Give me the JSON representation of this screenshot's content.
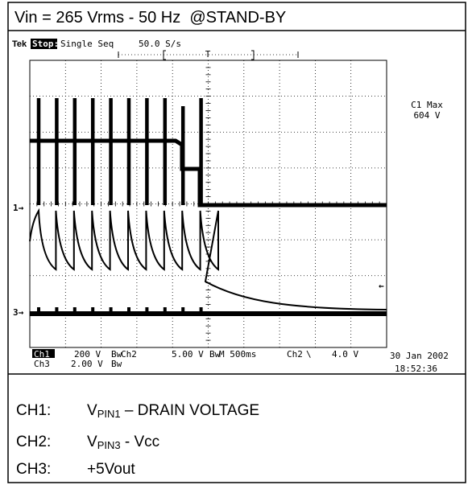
{
  "title": "Vin = 265 Vrms - 50 Hz  @STAND-BY",
  "scope": {
    "header": {
      "brand": "Tek",
      "state": "Stop:",
      "mode": "Single Seq",
      "rate": "50.0 S/s",
      "trigger_mark": "T"
    },
    "measurement": {
      "label": "C1 Max",
      "value": "604 V"
    },
    "markers": {
      "ch1": "1→",
      "ch3": "3→",
      "trigger_level": "←"
    },
    "settings": {
      "row1": [
        "Ch1",
        "200 V",
        "Bw",
        "Ch2",
        "5.00 V",
        "Bw",
        "M 500ms",
        "Ch2",
        "\\",
        "4.0 V"
      ],
      "row2": [
        "Ch3",
        "2.00 V",
        "Bw"
      ]
    },
    "date": "30 Jan 2002",
    "time": "18:52:36"
  },
  "legend": [
    {
      "channel": "CH1:",
      "symbol": "V",
      "subscript": "PIN1",
      "text": " – DRAIN VOLTAGE"
    },
    {
      "channel": "CH2:",
      "symbol": "V",
      "subscript": "PIN3",
      "text": " - Vcc"
    },
    {
      "channel": "CH3:",
      "text": "+5Vout"
    }
  ]
}
